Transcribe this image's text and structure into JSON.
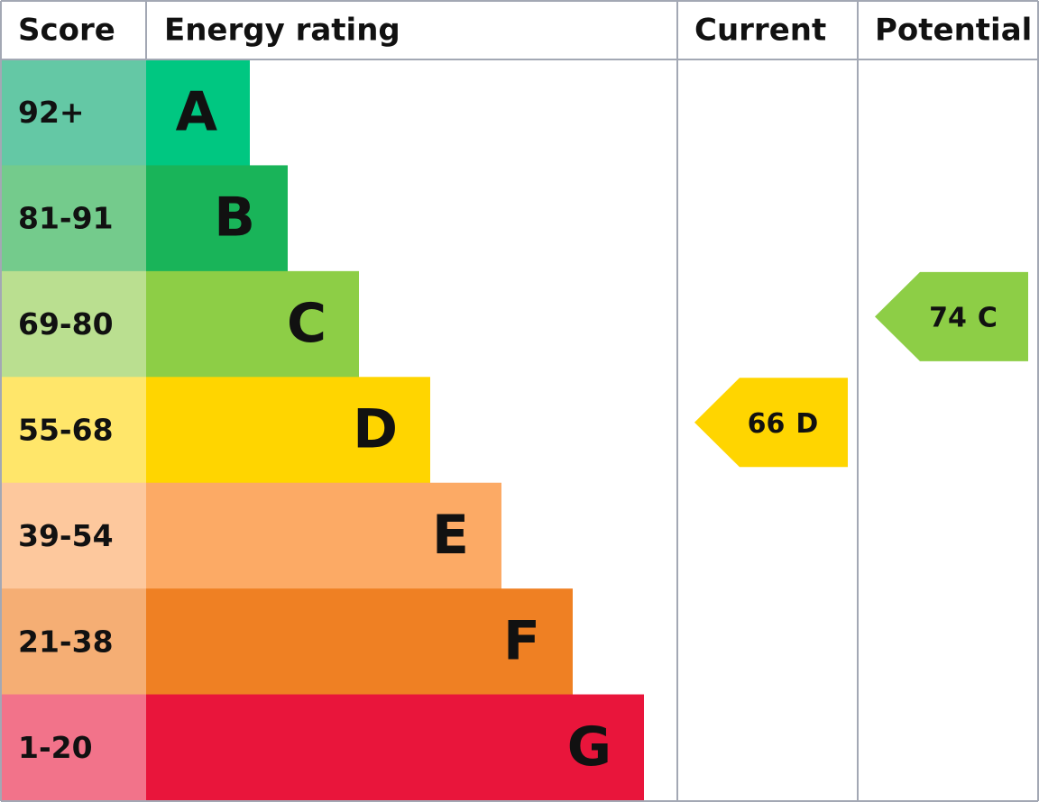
{
  "header": {
    "score": "Score",
    "rating": "Energy rating",
    "current": "Current",
    "potential": "Potential"
  },
  "bands": [
    {
      "score": "92+",
      "letter": "A",
      "color": "#00c781",
      "score_color": "#64c8a5"
    },
    {
      "score": "81-91",
      "letter": "B",
      "color": "#19b459",
      "score_color": "#74cb8c"
    },
    {
      "score": "69-80",
      "letter": "C",
      "color": "#8dce46",
      "score_color": "#badf90"
    },
    {
      "score": "55-68",
      "letter": "D",
      "color": "#ffd500",
      "score_color": "#ffe66a"
    },
    {
      "score": "39-54",
      "letter": "E",
      "color": "#fcaa65",
      "score_color": "#fdc89d"
    },
    {
      "score": "21-38",
      "letter": "F",
      "color": "#ef8023",
      "score_color": "#f5ae74"
    },
    {
      "score": "1-20",
      "letter": "G",
      "color": "#e9153b",
      "score_color": "#f2738a"
    }
  ],
  "current": {
    "score": 66,
    "rating": "D"
  },
  "potential": {
    "score": 74,
    "rating": "C"
  }
}
